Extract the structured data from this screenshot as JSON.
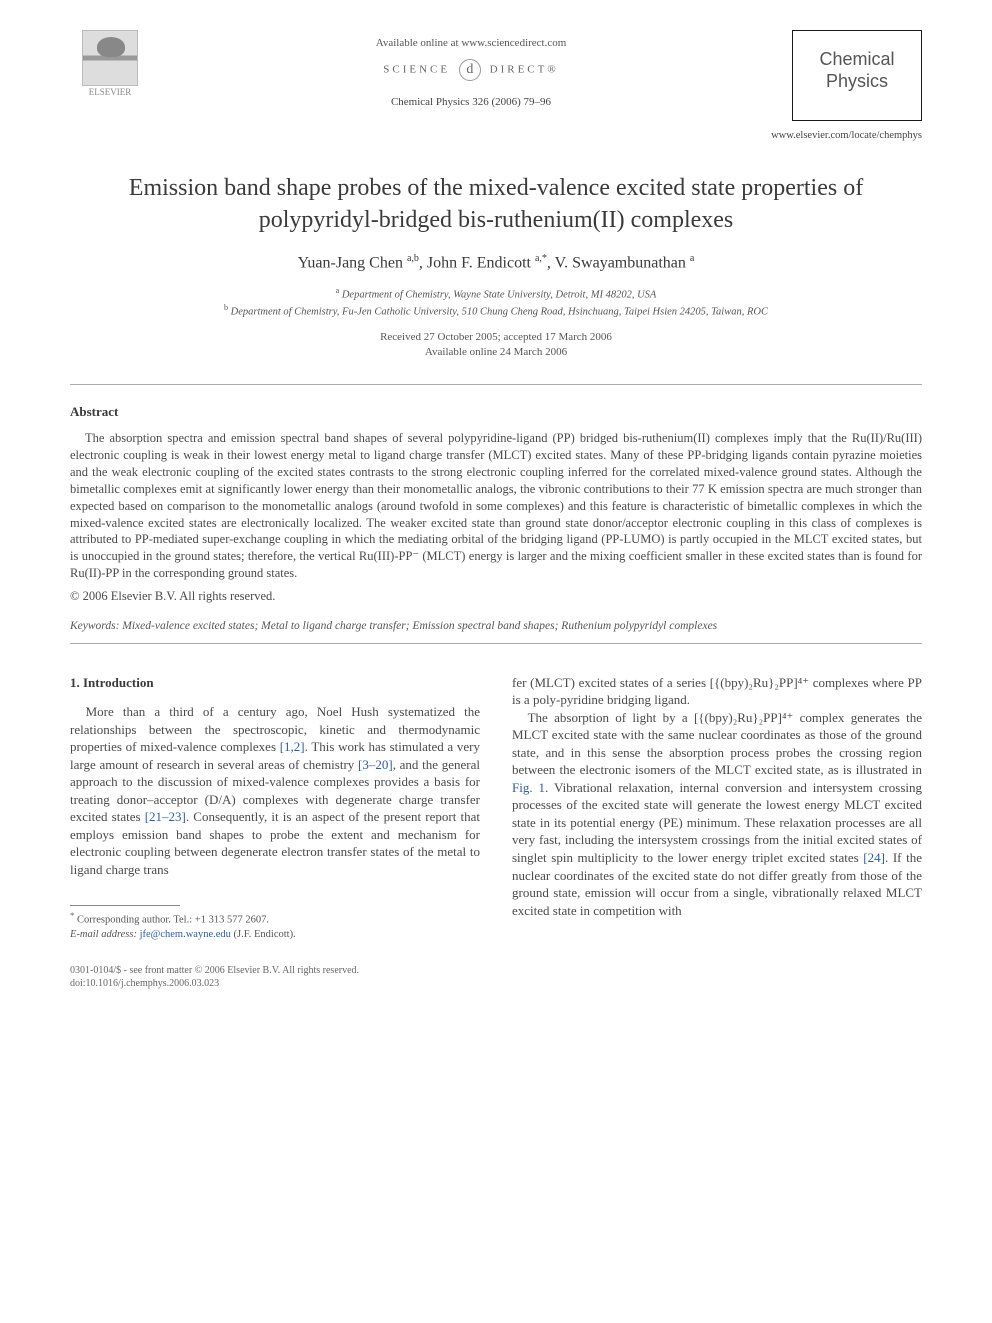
{
  "header": {
    "available_online": "Available online at www.sciencedirect.com",
    "science_direct": "SCIENCE",
    "science_direct_2": "DIRECT®",
    "journal_ref": "Chemical Physics 326 (2006) 79–96",
    "journal_name_line1": "Chemical",
    "journal_name_line2": "Physics",
    "publisher_name": "ELSEVIER",
    "locate_url": "www.elsevier.com/locate/chemphys"
  },
  "title": "Emission band shape probes of the mixed-valence excited state properties of polypyridyl-bridged bis-ruthenium(II) complexes",
  "authors": {
    "a1_name": "Yuan-Jang Chen",
    "a1_aff": "a,b",
    "a2_name": "John F. Endicott",
    "a2_aff": "a,*",
    "a3_name": "V. Swayambunathan",
    "a3_aff": "a"
  },
  "affiliations": {
    "a": "Department of Chemistry, Wayne State University, Detroit, MI 48202, USA",
    "b": "Department of Chemistry, Fu-Jen Catholic University, 510 Chung Cheng Road, Hsinchuang, Taipei Hsien 24205, Taiwan, ROC"
  },
  "dates": {
    "received": "Received 27 October 2005; accepted 17 March 2006",
    "online": "Available online 24 March 2006"
  },
  "abstract": {
    "heading": "Abstract",
    "body": "The absorption spectra and emission spectral band shapes of several polypyridine-ligand (PP) bridged bis-ruthenium(II) complexes imply that the Ru(II)/Ru(III) electronic coupling is weak in their lowest energy metal to ligand charge transfer (MLCT) excited states. Many of these PP-bridging ligands contain pyrazine moieties and the weak electronic coupling of the excited states contrasts to the strong electronic coupling inferred for the correlated mixed-valence ground states. Although the bimetallic complexes emit at significantly lower energy than their monometallic analogs, the vibronic contributions to their 77 K emission spectra are much stronger than expected based on comparison to the monometallic analogs (around twofold in some complexes) and this feature is characteristic of bimetallic complexes in which the mixed-valence excited states are electronically localized. The weaker excited state than ground state donor/acceptor electronic coupling in this class of complexes is attributed to PP-mediated super-exchange coupling in which the mediating orbital of the bridging ligand (PP-LUMO) is partly occupied in the MLCT excited states, but is unoccupied in the ground states; therefore, the vertical Ru(III)-PP⁻ (MLCT) energy is larger and the mixing coefficient smaller in these excited states than is found for Ru(II)-PP in the corresponding ground states.",
    "copyright": "© 2006 Elsevier B.V. All rights reserved."
  },
  "keywords": {
    "label": "Keywords:",
    "text": "Mixed-valence excited states; Metal to ligand charge transfer; Emission spectral band shapes; Ruthenium polypyridyl complexes"
  },
  "section1": {
    "heading": "1. Introduction",
    "para1_a": "More than a third of a century ago, Noel Hush systematized the relationships between the spectroscopic, kinetic and thermodynamic properties of mixed-valence complexes ",
    "ref1": "[1,2]",
    "para1_b": ". This work has stimulated a very large amount of research in several areas of chemistry ",
    "ref2": "[3–20]",
    "para1_c": ", and the general approach to the discussion of mixed-valence complexes provides a basis for treating donor–acceptor (D/A) complexes with degenerate charge transfer excited states ",
    "ref3": "[21–23]",
    "para1_d": ". Consequently, it is an aspect of the present report that employs emission band shapes to probe the extent and mechanism for electronic coupling between degenerate electron transfer states of the metal to ligand charge trans",
    "para1_e": "fer (MLCT) excited states of a series [{(bpy)₂Ru}₂PP]⁴⁺ complexes where PP is a poly-pyridine bridging ligand.",
    "para2_a": "The absorption of light by a [{(bpy)₂Ru}₂PP]⁴⁺ complex generates the MLCT excited state with the same nuclear coordinates as those of the ground state, and in this sense the absorption process probes the crossing region between the electronic isomers of the MLCT excited state, as is illustrated in ",
    "figref": "Fig. 1",
    "para2_b": ". Vibrational relaxation, internal conversion and intersystem crossing processes of the excited state will generate the lowest energy MLCT excited state in its potential energy (PE) minimum. These relaxation processes are all very fast, including the intersystem crossings from the initial excited states of singlet spin multiplicity to the lower energy triplet excited states ",
    "ref4": "[24]",
    "para2_c": ". If the nuclear coordinates of the excited state do not differ greatly from those of the ground state, emission will occur from a single, vibrationally relaxed MLCT excited state in competition with"
  },
  "footnotes": {
    "corr": "Corresponding author. Tel.: +1 313 577 2607.",
    "email_label": "E-mail address:",
    "email": "jfe@chem.wayne.edu",
    "email_who": "(J.F. Endicott)."
  },
  "footer": {
    "line1": "0301-0104/$ - see front matter © 2006 Elsevier B.V. All rights reserved.",
    "line2": "doi:10.1016/j.chemphys.2006.03.023"
  },
  "colors": {
    "text": "#3a3a3a",
    "muted": "#555555",
    "link": "#2a5db0",
    "rule": "#888888",
    "background": "#ffffff"
  }
}
